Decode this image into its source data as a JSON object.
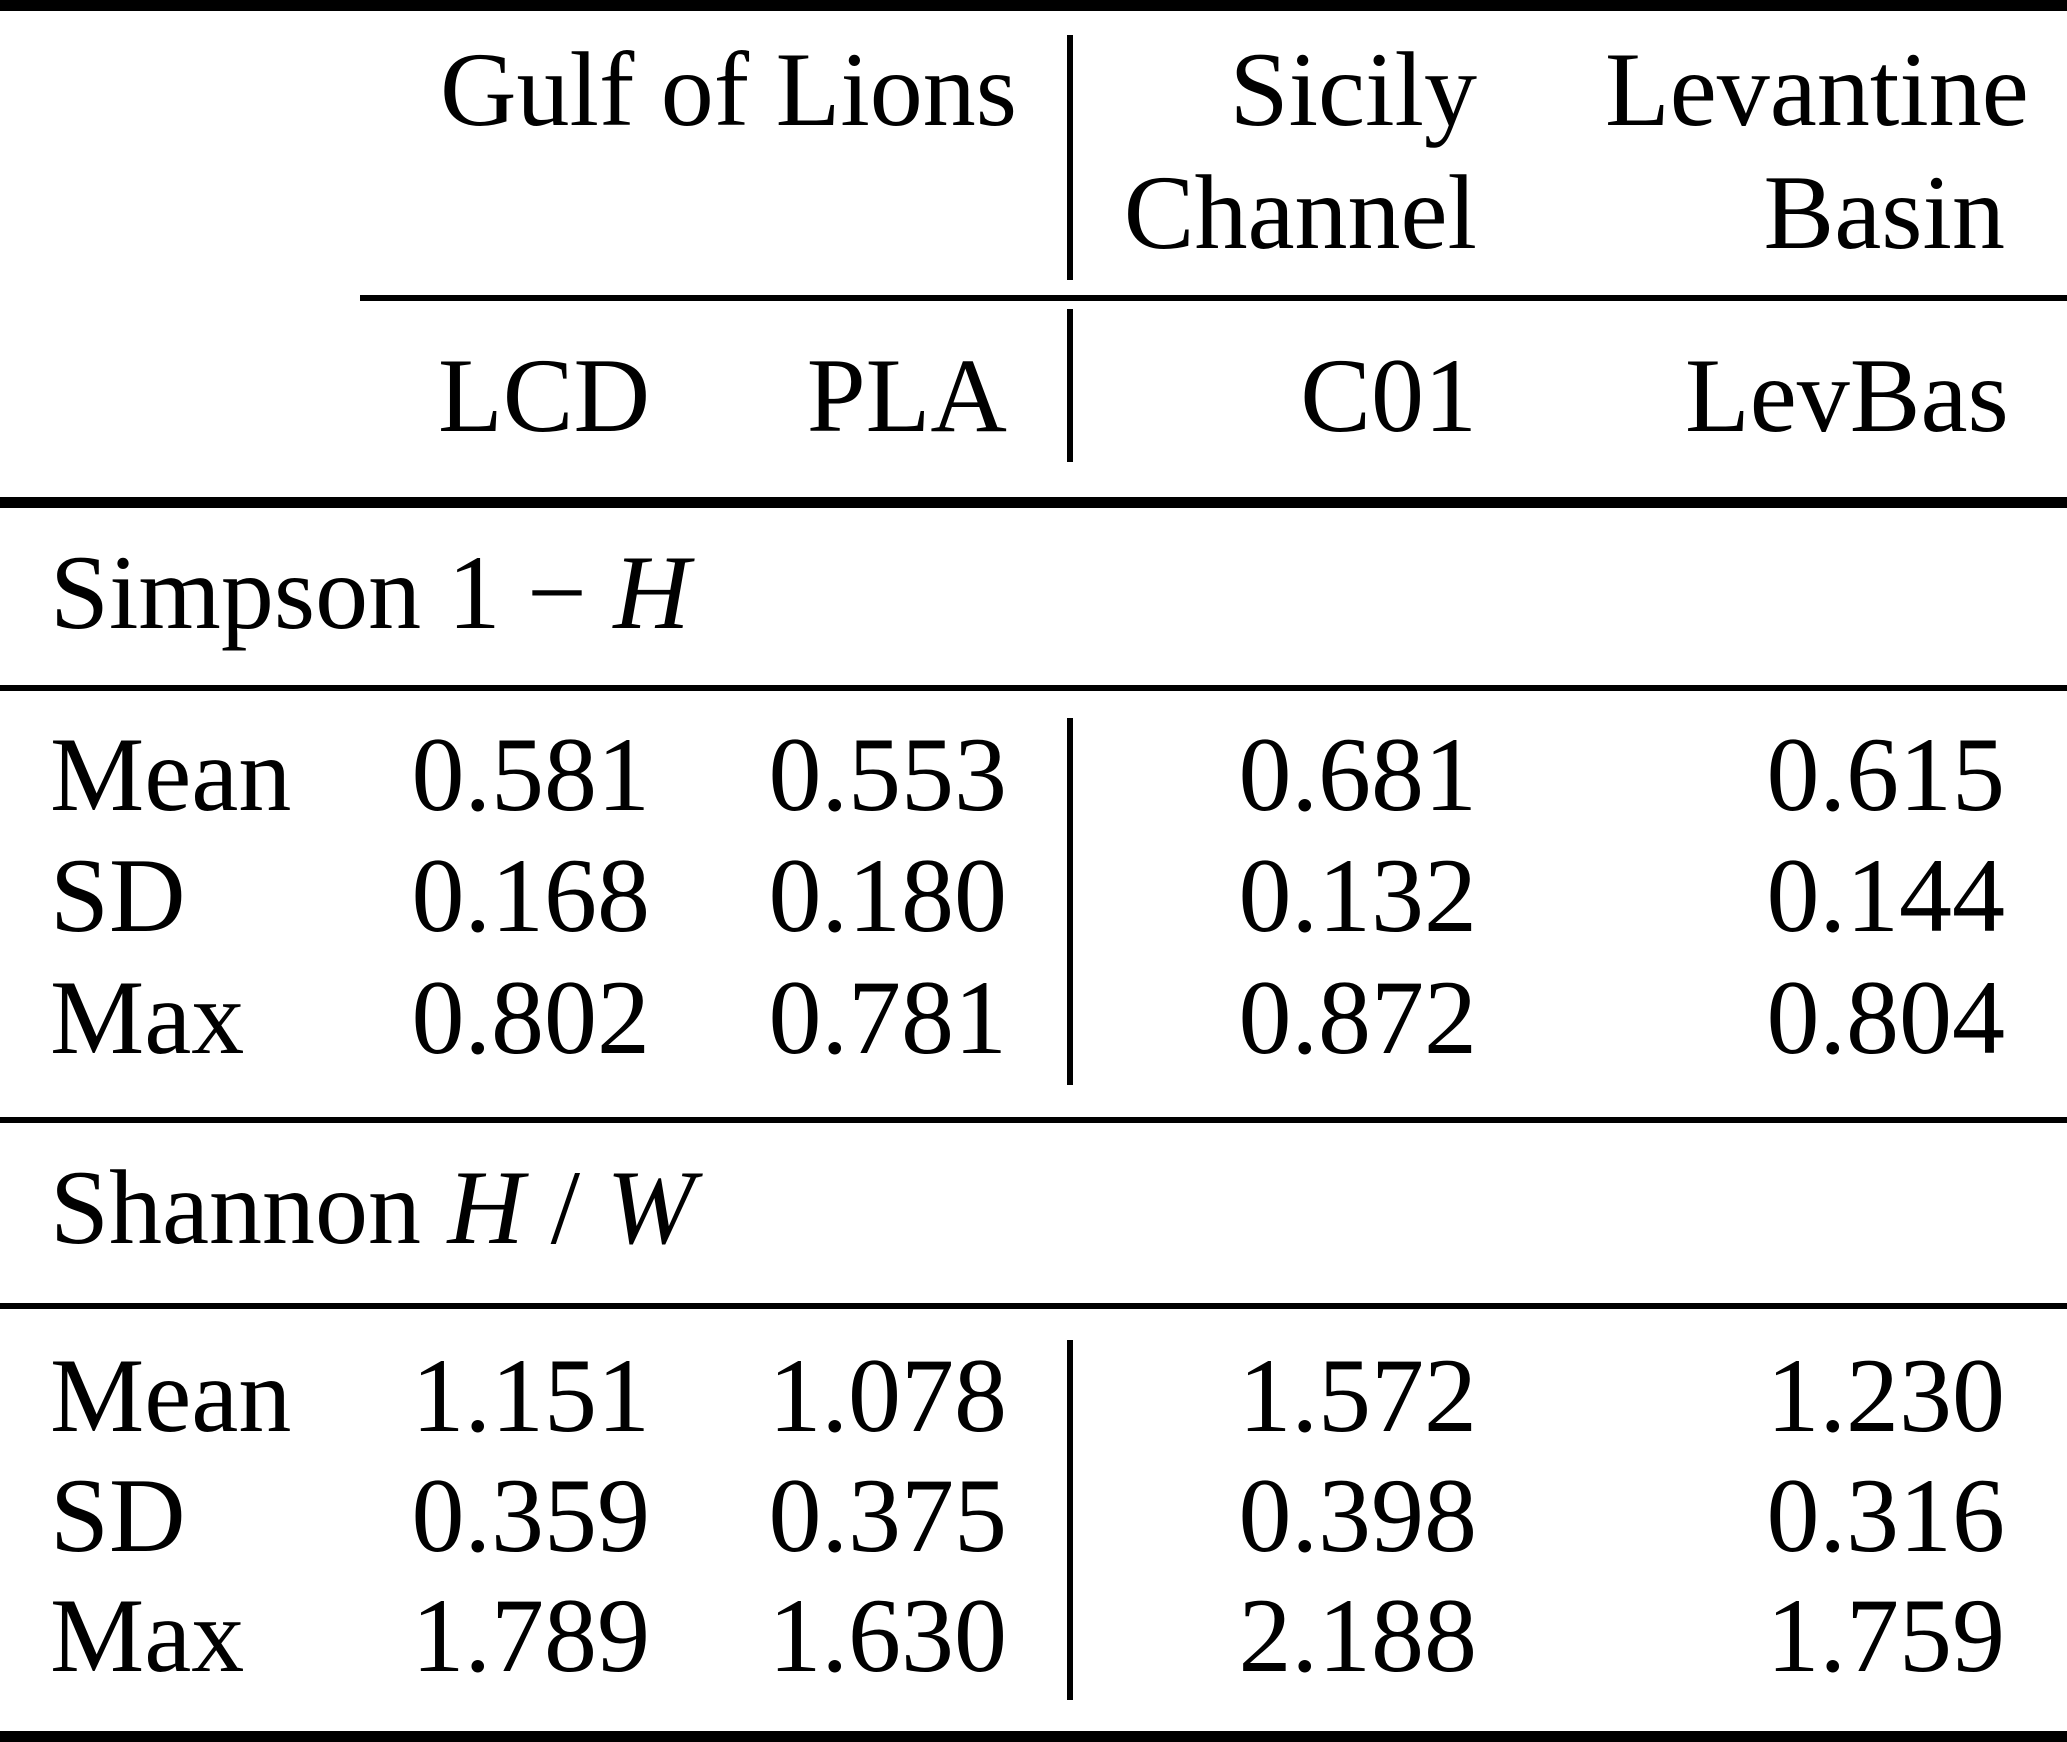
{
  "table": {
    "column_groups": [
      {
        "lines": [
          "Gulf of Lions"
        ]
      },
      {
        "lines": [
          "Sicily",
          "Channel"
        ]
      },
      {
        "lines": [
          "Levantine",
          "Basin"
        ]
      }
    ],
    "columns": [
      "LCD",
      "PLA",
      "C01",
      "LevBas"
    ],
    "sections": [
      {
        "title_parts": [
          {
            "text": "Simpson 1 − ",
            "italic": false
          },
          {
            "text": "H",
            "italic": true
          }
        ],
        "rows": [
          {
            "label": "Mean",
            "values": [
              "0.581",
              "0.553",
              "0.681",
              "0.615"
            ]
          },
          {
            "label": "SD",
            "values": [
              "0.168",
              "0.180",
              "0.132",
              "0.144"
            ]
          },
          {
            "label": "Max",
            "values": [
              "0.802",
              "0.781",
              "0.872",
              "0.804"
            ]
          }
        ]
      },
      {
        "title_parts": [
          {
            "text": "Shannon ",
            "italic": false
          },
          {
            "text": "H",
            "italic": true
          },
          {
            "text": " / ",
            "italic": false
          },
          {
            "text": "W",
            "italic": true
          }
        ],
        "rows": [
          {
            "label": "Mean",
            "values": [
              "1.151",
              "1.078",
              "1.572",
              "1.230"
            ]
          },
          {
            "label": "SD",
            "values": [
              "0.359",
              "0.375",
              "0.398",
              "0.316"
            ]
          },
          {
            "label": "Max",
            "values": [
              "1.789",
              "1.630",
              "2.188",
              "1.759"
            ]
          }
        ]
      }
    ],
    "colors": {
      "text": "#000000",
      "background": "#ffffff",
      "rule": "#000000"
    }
  }
}
